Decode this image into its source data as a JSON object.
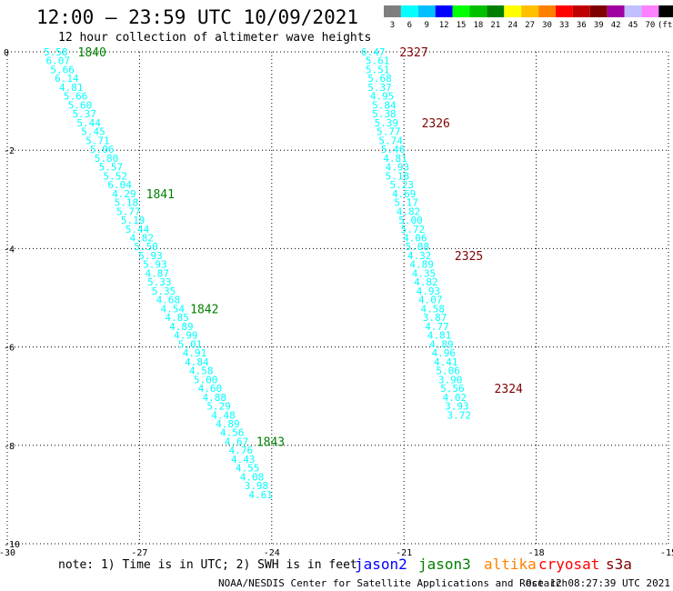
{
  "header": {
    "title": "12:00 – 23:59 UTC 10/09/2021",
    "subtitle": "12 hour collection of altimeter wave heights"
  },
  "legend": {
    "labels": [
      "3",
      "6",
      "9",
      "12",
      "15",
      "18",
      "21",
      "24",
      "27",
      "30",
      "33",
      "36",
      "39",
      "42",
      "45",
      "70",
      "(ft)"
    ],
    "colors": [
      "#7f7f7f",
      "#00ffff",
      "#00bfff",
      "#0000ff",
      "#00ff00",
      "#00c000",
      "#008000",
      "#ffff00",
      "#ffc000",
      "#ff8000",
      "#ff0000",
      "#c00000",
      "#800000",
      "#a000a0",
      "#c0c0ff",
      "#ff80ff",
      "#000000"
    ]
  },
  "axes": {
    "x_ticks": [
      "-30",
      "-27",
      "-24",
      "-21",
      "-18",
      "-15"
    ],
    "y_ticks": [
      "0",
      "-2",
      "-4",
      "-6",
      "-8",
      "-10"
    ],
    "x_range": [
      -30,
      -15
    ],
    "y_range": [
      -10,
      0
    ],
    "grid": true
  },
  "tracks": [
    {
      "color": "#00ffff",
      "points": [
        {
          "lon": -28.9,
          "lat": 0.0,
          "swh": "5.58"
        },
        {
          "lon": -28.85,
          "lat": -0.18,
          "swh": "6.07"
        },
        {
          "lon": -28.75,
          "lat": -0.36,
          "swh": "5.66"
        },
        {
          "lon": -28.65,
          "lat": -0.54,
          "swh": "6.14"
        },
        {
          "lon": -28.55,
          "lat": -0.72,
          "swh": "4.81"
        },
        {
          "lon": -28.45,
          "lat": -0.9,
          "swh": "5.66"
        },
        {
          "lon": -28.35,
          "lat": -1.08,
          "swh": "5.60"
        },
        {
          "lon": -28.25,
          "lat": -1.26,
          "swh": "5.37"
        },
        {
          "lon": -28.15,
          "lat": -1.44,
          "swh": "5.44"
        },
        {
          "lon": -28.05,
          "lat": -1.62,
          "swh": "5.45"
        },
        {
          "lon": -27.95,
          "lat": -1.8,
          "swh": "5.71"
        },
        {
          "lon": -27.85,
          "lat": -1.98,
          "swh": "5.06"
        },
        {
          "lon": -27.75,
          "lat": -2.16,
          "swh": "5.80"
        },
        {
          "lon": -27.65,
          "lat": -2.34,
          "swh": "5.57"
        },
        {
          "lon": -27.55,
          "lat": -2.52,
          "swh": "5.52"
        },
        {
          "lon": -27.45,
          "lat": -2.7,
          "swh": "6.04"
        },
        {
          "lon": -27.35,
          "lat": -2.88,
          "swh": "4.29"
        },
        {
          "lon": -27.3,
          "lat": -3.06,
          "swh": "5.18"
        },
        {
          "lon": -27.25,
          "lat": -3.24,
          "swh": "5.77"
        },
        {
          "lon": -27.15,
          "lat": -3.42,
          "swh": "5.19"
        },
        {
          "lon": -27.05,
          "lat": -3.6,
          "swh": "5.44"
        },
        {
          "lon": -26.95,
          "lat": -3.78,
          "swh": "4.82"
        },
        {
          "lon": -26.85,
          "lat": -3.96,
          "swh": "5.50"
        },
        {
          "lon": -26.75,
          "lat": -4.14,
          "swh": "5.93"
        },
        {
          "lon": -26.65,
          "lat": -4.32,
          "swh": "5.93"
        },
        {
          "lon": -26.6,
          "lat": -4.5,
          "swh": "4.87"
        },
        {
          "lon": -26.55,
          "lat": -4.68,
          "swh": "5.33"
        },
        {
          "lon": -26.45,
          "lat": -4.86,
          "swh": "5.35"
        },
        {
          "lon": -26.35,
          "lat": -5.04,
          "swh": "4.68"
        },
        {
          "lon": -26.25,
          "lat": -5.22,
          "swh": "4.54"
        },
        {
          "lon": -26.15,
          "lat": -5.4,
          "swh": "4.85"
        },
        {
          "lon": -26.05,
          "lat": -5.58,
          "swh": "4.89"
        },
        {
          "lon": -25.95,
          "lat": -5.76,
          "swh": "4.99"
        },
        {
          "lon": -25.85,
          "lat": -5.94,
          "swh": "5.01"
        },
        {
          "lon": -25.75,
          "lat": -6.12,
          "swh": "4.91"
        },
        {
          "lon": -25.7,
          "lat": -6.3,
          "swh": "4.84"
        },
        {
          "lon": -25.6,
          "lat": -6.48,
          "swh": "4.58"
        },
        {
          "lon": -25.5,
          "lat": -6.66,
          "swh": "5.00"
        },
        {
          "lon": -25.4,
          "lat": -6.84,
          "swh": "4.60"
        },
        {
          "lon": -25.3,
          "lat": -7.02,
          "swh": "4.88"
        },
        {
          "lon": -25.2,
          "lat": -7.2,
          "swh": "5.29"
        },
        {
          "lon": -25.1,
          "lat": -7.38,
          "swh": "4.48"
        },
        {
          "lon": -25.0,
          "lat": -7.56,
          "swh": "4.89"
        },
        {
          "lon": -24.9,
          "lat": -7.74,
          "swh": "4.56"
        },
        {
          "lon": -24.8,
          "lat": -7.92,
          "swh": "4.67"
        },
        {
          "lon": -24.7,
          "lat": -8.1,
          "swh": "4.76"
        },
        {
          "lon": -24.65,
          "lat": -8.28,
          "swh": "4.43"
        },
        {
          "lon": -24.55,
          "lat": -8.46,
          "swh": "4.55"
        },
        {
          "lon": -24.45,
          "lat": -8.64,
          "swh": "4.08"
        },
        {
          "lon": -24.35,
          "lat": -8.82,
          "swh": "3.98"
        },
        {
          "lon": -24.25,
          "lat": -9.0,
          "swh": "4.61"
        }
      ]
    },
    {
      "color": "#00ffff",
      "points": [
        {
          "lon": -21.7,
          "lat": 0.0,
          "swh": "6.47"
        },
        {
          "lon": -21.6,
          "lat": -0.18,
          "swh": "5.61"
        },
        {
          "lon": -21.6,
          "lat": -0.36,
          "swh": "5.51"
        },
        {
          "lon": -21.55,
          "lat": -0.54,
          "swh": "5.68"
        },
        {
          "lon": -21.55,
          "lat": -0.72,
          "swh": "5.37"
        },
        {
          "lon": -21.5,
          "lat": -0.9,
          "swh": "4.95"
        },
        {
          "lon": -21.45,
          "lat": -1.08,
          "swh": "5.84"
        },
        {
          "lon": -21.45,
          "lat": -1.26,
          "swh": "5.38"
        },
        {
          "lon": -21.4,
          "lat": -1.44,
          "swh": "5.39"
        },
        {
          "lon": -21.35,
          "lat": -1.62,
          "swh": "5.77"
        },
        {
          "lon": -21.3,
          "lat": -1.8,
          "swh": "5.74"
        },
        {
          "lon": -21.25,
          "lat": -1.98,
          "swh": "5.46"
        },
        {
          "lon": -21.2,
          "lat": -2.16,
          "swh": "4.81"
        },
        {
          "lon": -21.15,
          "lat": -2.34,
          "swh": "4.93"
        },
        {
          "lon": -21.15,
          "lat": -2.52,
          "swh": "5.18"
        },
        {
          "lon": -21.05,
          "lat": -2.7,
          "swh": "5.23"
        },
        {
          "lon": -21.0,
          "lat": -2.88,
          "swh": "4.69"
        },
        {
          "lon": -20.95,
          "lat": -3.06,
          "swh": "5.17"
        },
        {
          "lon": -20.9,
          "lat": -3.24,
          "swh": "4.82"
        },
        {
          "lon": -20.85,
          "lat": -3.42,
          "swh": "5.00"
        },
        {
          "lon": -20.8,
          "lat": -3.6,
          "swh": "5.72"
        },
        {
          "lon": -20.75,
          "lat": -3.78,
          "swh": "4.06"
        },
        {
          "lon": -20.7,
          "lat": -3.96,
          "swh": "5.08"
        },
        {
          "lon": -20.65,
          "lat": -4.14,
          "swh": "4.32"
        },
        {
          "lon": -20.6,
          "lat": -4.32,
          "swh": "4.89"
        },
        {
          "lon": -20.55,
          "lat": -4.5,
          "swh": "4.35"
        },
        {
          "lon": -20.5,
          "lat": -4.68,
          "swh": "4.82"
        },
        {
          "lon": -20.45,
          "lat": -4.86,
          "swh": "4.93"
        },
        {
          "lon": -20.4,
          "lat": -5.04,
          "swh": "4.07"
        },
        {
          "lon": -20.35,
          "lat": -5.22,
          "swh": "4.58"
        },
        {
          "lon": -20.3,
          "lat": -5.4,
          "swh": "3.87"
        },
        {
          "lon": -20.25,
          "lat": -5.58,
          "swh": "4.77"
        },
        {
          "lon": -20.2,
          "lat": -5.76,
          "swh": "4.81"
        },
        {
          "lon": -20.15,
          "lat": -5.94,
          "swh": "4.89"
        },
        {
          "lon": -20.1,
          "lat": -6.12,
          "swh": "4.96"
        },
        {
          "lon": -20.05,
          "lat": -6.3,
          "swh": "4.41"
        },
        {
          "lon": -20.0,
          "lat": -6.48,
          "swh": "5.06"
        },
        {
          "lon": -19.95,
          "lat": -6.66,
          "swh": "3.90"
        },
        {
          "lon": -19.9,
          "lat": -6.84,
          "swh": "5.56"
        },
        {
          "lon": -19.85,
          "lat": -7.02,
          "swh": "4.02"
        },
        {
          "lon": -19.8,
          "lat": -7.2,
          "swh": "3.93"
        },
        {
          "lon": -19.75,
          "lat": -7.38,
          "swh": "3.72"
        }
      ]
    }
  ],
  "orbit_labels": [
    {
      "text": "1840",
      "lon": -28.4,
      "lat": 0.0,
      "color": "#008000"
    },
    {
      "text": "1841",
      "lon": -26.85,
      "lat": -2.88,
      "color": "#008000"
    },
    {
      "text": "1842",
      "lon": -25.85,
      "lat": -5.22,
      "color": "#008000"
    },
    {
      "text": "1843",
      "lon": -24.35,
      "lat": -7.92,
      "color": "#008000"
    },
    {
      "text": "2327",
      "lon": -21.1,
      "lat": 0.0,
      "color": "#800000"
    },
    {
      "text": "2326",
      "lon": -20.6,
      "lat": -1.44,
      "color": "#800000"
    },
    {
      "text": "2325",
      "lon": -19.85,
      "lat": -4.14,
      "color": "#800000"
    },
    {
      "text": "2324",
      "lon": -18.95,
      "lat": -6.84,
      "color": "#800000"
    }
  ],
  "footer": {
    "note": "note: 1) Time is in UTC; 2) SWH is in feet",
    "satellites": [
      {
        "name": "jason2",
        "color": "#0000ff"
      },
      {
        "name": "jason3",
        "color": "#008000"
      },
      {
        "name": "altika",
        "color": "#ff8000"
      },
      {
        "name": "cryosat",
        "color": "#ff0000"
      },
      {
        "name": "s3a",
        "color": "#800000"
      }
    ],
    "credit": "NOAA/NESDIS Center for Satellite Applications and Research",
    "timestamp": "Oct 12 08:27:39 UTC 2021"
  }
}
